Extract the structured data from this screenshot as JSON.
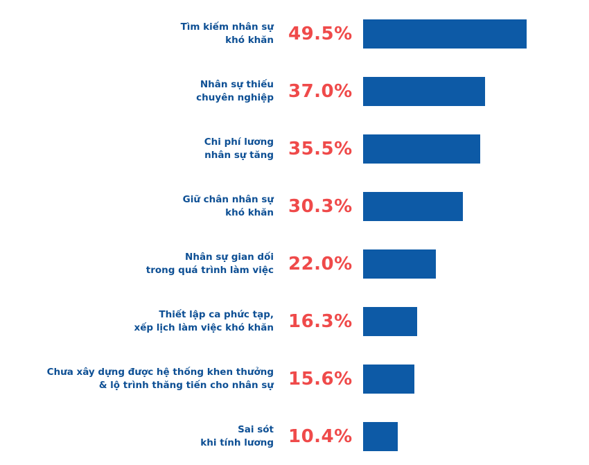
{
  "chart_data": {
    "type": "bar",
    "orientation": "horizontal",
    "categories": [
      [
        "Tìm kiếm nhân sự",
        "khó khăn"
      ],
      [
        "Nhân sự thiếu",
        "chuyên nghiệp"
      ],
      [
        "Chi phí lương",
        "nhân sự tăng"
      ],
      [
        "Giữ chân nhân sự",
        "khó khăn"
      ],
      [
        "Nhân sự gian dối",
        "trong quá trình làm việc"
      ],
      [
        "Thiết lập ca phức tạp,",
        "xếp lịch làm việc khó khăn"
      ],
      [
        "Chưa xây dựng được hệ thống khen thưởng",
        "& lộ trình thăng tiến cho nhân sự"
      ],
      [
        "Sai sót",
        "khi tính lương"
      ]
    ],
    "values": [
      49.5,
      37.0,
      35.5,
      30.3,
      22.0,
      16.3,
      15.6,
      10.4
    ],
    "value_labels": [
      "49.5%",
      "37.0%",
      "35.5%",
      "30.3%",
      "22.0%",
      "16.3%",
      "15.6%",
      "10.4%"
    ],
    "xlim": [
      0,
      49.5
    ],
    "colors": {
      "bar": "#0d5aa6",
      "value_label": "#ef4a4a",
      "category_label": "#0d4f94"
    },
    "grid": false,
    "legend": false
  }
}
